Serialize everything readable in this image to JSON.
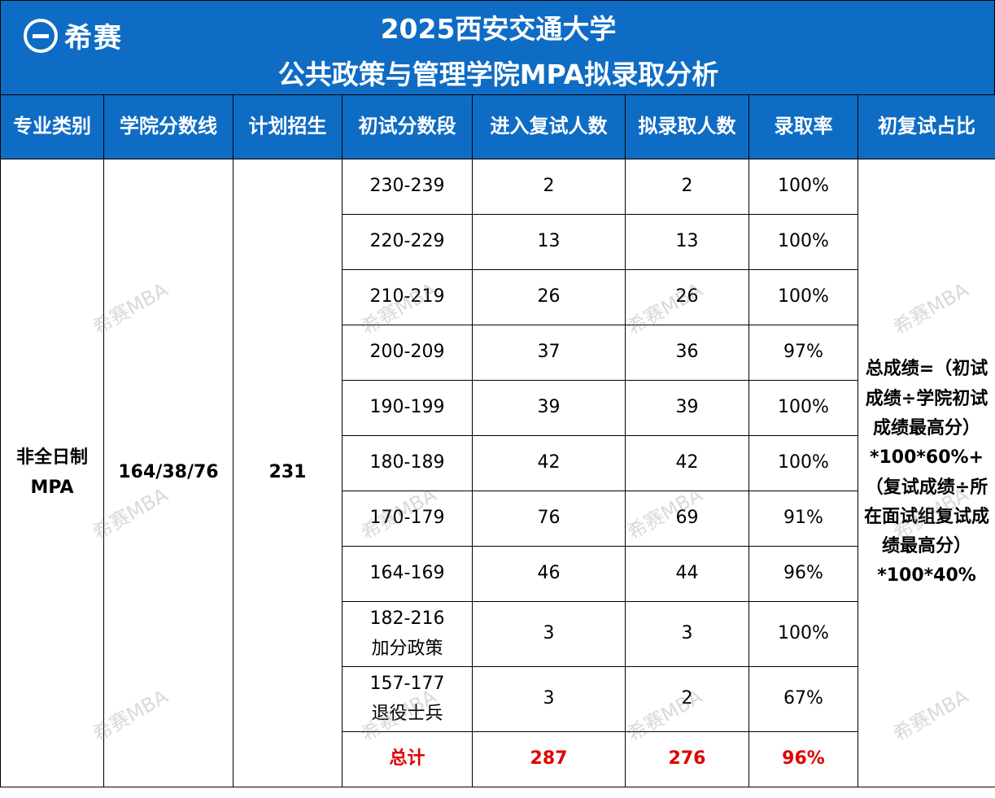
{
  "brand": {
    "name": "希赛"
  },
  "title": {
    "line1": "2025西安交通大学",
    "line2": "公共政策与管理学院MPA拟录取分析"
  },
  "headers": [
    "专业类别",
    "学院分数线",
    "计划招生",
    "初试分数段",
    "进入复试人数",
    "拟录取人数",
    "录取率",
    "初复试占比"
  ],
  "program": {
    "name": "非全日制MPA",
    "cutoff": "164/38/76",
    "plan": "231"
  },
  "rows": [
    {
      "range": "230-239",
      "interview": "2",
      "admit": "2",
      "rate": "100%"
    },
    {
      "range": "220-229",
      "interview": "13",
      "admit": "13",
      "rate": "100%"
    },
    {
      "range": "210-219",
      "interview": "26",
      "admit": "26",
      "rate": "100%"
    },
    {
      "range": "200-209",
      "interview": "37",
      "admit": "36",
      "rate": "97%"
    },
    {
      "range": "190-199",
      "interview": "39",
      "admit": "39",
      "rate": "100%"
    },
    {
      "range": "180-189",
      "interview": "42",
      "admit": "42",
      "rate": "100%"
    },
    {
      "range": "170-179",
      "interview": "76",
      "admit": "69",
      "rate": "91%"
    },
    {
      "range": "164-169",
      "interview": "46",
      "admit": "44",
      "rate": "96%"
    },
    {
      "range": "182-216",
      "note": "加分政策",
      "interview": "3",
      "admit": "3",
      "rate": "100%"
    },
    {
      "range": "157-177",
      "note": "退役士兵",
      "interview": "3",
      "admit": "2",
      "rate": "67%"
    }
  ],
  "total": {
    "label": "总计",
    "interview": "287",
    "admit": "276",
    "rate": "96%"
  },
  "weighting": "总成绩=（初试成绩÷学院初试成绩最高分）*100*60%+（复试成绩÷所在面试组复试成绩最高分）*100*40%",
  "watermark": "希赛MBA",
  "colors": {
    "header_bg": "#0f6cc4",
    "total_text": "#e00000"
  }
}
